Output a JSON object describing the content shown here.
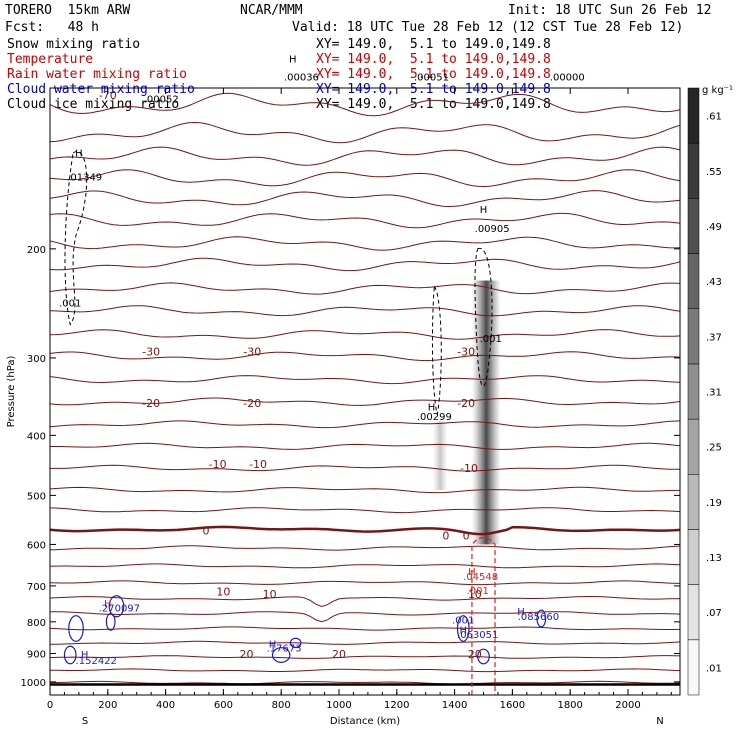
{
  "header": {
    "model": "TORERO  15km ARW",
    "center": "NCAR/MMM",
    "init": "Init: 18 UTC Sun 26 Feb 12",
    "fcst": "Fcst:   48 h",
    "valid": "Valid: 18 UTC Tue 28 Feb 12 (12 CST Tue 28 Feb 12)"
  },
  "fields": [
    {
      "name": "Snow mixing ratio",
      "xy": "XY= 149.0,  5.1 to 149.0,149.8",
      "color": "#000000"
    },
    {
      "name": "Temperature",
      "xy": "XY= 149.0,  5.1 to 149.0,149.8",
      "color": "#cc0000"
    },
    {
      "name": "Rain water mixing ratio",
      "xy": "XY= 149.0,  5.1 to 149.0,149.8",
      "color": "#cc0000"
    },
    {
      "name": "Cloud water mixing ratio",
      "xy": "XY= 149.0,  5.1 to 149.0,149.8",
      "color": "#0000cc"
    },
    {
      "name": "Cloud ice mixing ratio",
      "xy": "XY= 149.0,  5.1 to 149.0,149.8",
      "color": "#000000"
    }
  ],
  "colors": {
    "isotherm": "#7a1414",
    "rain": "#dd2222",
    "cloudwater": "#1a1acc",
    "ice": "#000000",
    "surface": "#000000"
  },
  "chart_data": {
    "type": "contour",
    "xlabel": "Distance (km)",
    "ylabel": "Pressure (hPa)",
    "xlim": [
      0,
      2180
    ],
    "ylim": [
      1050,
      110
    ],
    "y_log": true,
    "x_ticks": [
      0,
      200,
      400,
      600,
      800,
      1000,
      1200,
      1400,
      1600,
      1800,
      2000
    ],
    "y_ticks": [
      200,
      300,
      400,
      500,
      600,
      700,
      800,
      900,
      1000
    ],
    "end_labels": {
      "left": "S",
      "right": "N"
    },
    "colorbar": {
      "units": "g kg⁻¹",
      "labels": [
        ".01",
        ".07",
        ".13",
        ".19",
        ".25",
        ".31",
        ".37",
        ".43",
        ".49",
        ".55",
        ".61"
      ]
    },
    "isotherm_labels": [
      {
        "t": "-70",
        "x": 200,
        "p": 113
      },
      {
        "t": "-30",
        "x": 350,
        "p": 293
      },
      {
        "t": "-30",
        "x": 700,
        "p": 293
      },
      {
        "t": "-30",
        "x": 1440,
        "p": 293
      },
      {
        "t": "-20",
        "x": 350,
        "p": 355
      },
      {
        "t": "-20",
        "x": 700,
        "p": 355
      },
      {
        "t": "-20",
        "x": 1440,
        "p": 355
      },
      {
        "t": "-10",
        "x": 580,
        "p": 445
      },
      {
        "t": "-10",
        "x": 720,
        "p": 445
      },
      {
        "t": "-10",
        "x": 1450,
        "p": 452
      },
      {
        "t": "0",
        "x": 540,
        "p": 570
      },
      {
        "t": "0",
        "x": 1370,
        "p": 580
      },
      {
        "t": "0",
        "x": 1440,
        "p": 580
      },
      {
        "t": "10",
        "x": 600,
        "p": 715
      },
      {
        "t": "10",
        "x": 760,
        "p": 722
      },
      {
        "t": "10",
        "x": 1470,
        "p": 722
      },
      {
        "t": "20",
        "x": 680,
        "p": 902
      },
      {
        "t": "20",
        "x": 1000,
        "p": 902
      },
      {
        "t": "20",
        "x": 1470,
        "p": 902
      }
    ],
    "extrema_labels": [
      {
        "t": "H",
        "x": 1500,
        "p": 175,
        "color": "black"
      },
      {
        "t": ".00905",
        "x": 1530,
        "p": 188,
        "color": "black"
      },
      {
        "t": "H",
        "x": 1320,
        "p": 365,
        "color": "black"
      },
      {
        "t": ".00299",
        "x": 1330,
        "p": 378,
        "color": "black"
      },
      {
        "t": ".001",
        "x": 1525,
        "p": 283,
        "color": "black"
      },
      {
        "t": "H",
        "x": 100,
        "p": 142,
        "color": "black"
      },
      {
        "t": ".01349",
        "x": 120,
        "p": 155,
        "color": "black"
      },
      {
        "t": ".001",
        "x": 70,
        "p": 248,
        "color": "black"
      },
      {
        "t": ".00052",
        "x": 385,
        "p": 116,
        "color": "black"
      },
      {
        "t": "H",
        "x": 840,
        "p": 100,
        "color": "black"
      },
      {
        "t": ".00036",
        "x": 870,
        "p": 107,
        "color": "black"
      },
      {
        "t": ".00051",
        "x": 1320,
        "p": 107,
        "color": "black"
      },
      {
        "t": ".00000",
        "x": 1790,
        "p": 107,
        "color": "black"
      },
      {
        "t": "H",
        "x": 1460,
        "p": 672,
        "color": "red"
      },
      {
        "t": ".04548",
        "x": 1490,
        "p": 685,
        "color": "red"
      },
      {
        "t": ".001",
        "x": 1480,
        "p": 722,
        "color": "red"
      },
      {
        "t": "H",
        "x": 200,
        "p": 757,
        "color": "red"
      },
      {
        "t": ".270097",
        "x": 240,
        "p": 770,
        "color": "blue"
      },
      {
        "t": "H",
        "x": 1630,
        "p": 780,
        "color": "blue"
      },
      {
        "t": ".085660",
        "x": 1690,
        "p": 795,
        "color": "blue"
      },
      {
        "t": ".001",
        "x": 1430,
        "p": 805,
        "color": "blue"
      },
      {
        "t": "H",
        "x": 1430,
        "p": 835,
        "color": "blue"
      },
      {
        "t": ".063051",
        "x": 1480,
        "p": 850,
        "color": "blue"
      },
      {
        "t": "H",
        "x": 770,
        "p": 880,
        "color": "blue"
      },
      {
        "t": ".17673",
        "x": 810,
        "p": 893,
        "color": "blue"
      },
      {
        "t": "H",
        "x": 120,
        "p": 915,
        "color": "blue"
      },
      {
        "t": ".152422",
        "x": 160,
        "p": 935,
        "color": "blue"
      }
    ]
  }
}
